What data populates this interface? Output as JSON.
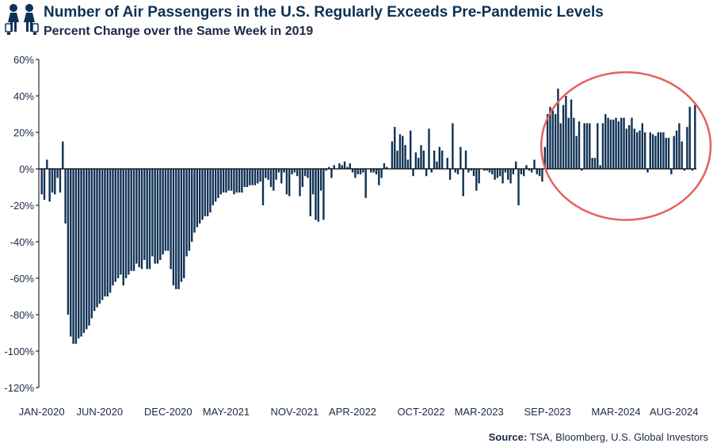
{
  "header": {
    "title": "Number of Air Passengers in the U.S. Regularly Exceeds Pre-Pandemic Levels",
    "subtitle": "Percent Change over the Same Week in 2019",
    "logo_icon": "travelers-icon"
  },
  "source": {
    "label": "Source:",
    "text": "TSA, Bloomberg, U.S. Global Investors"
  },
  "colors": {
    "bars": "#0f3155",
    "highlight_circle": "#e8605c",
    "axis": "#000000",
    "text": "#1b2a44"
  },
  "chart_data": {
    "type": "bar",
    "title": "Number of Air Passengers in the U.S. Regularly Exceeds Pre-Pandemic Levels",
    "subtitle": "Percent Change over the Same Week in 2019",
    "xlabel": "",
    "ylabel": "",
    "unit": "%",
    "ylim": [
      -120,
      60
    ],
    "yticks": [
      60,
      40,
      20,
      0,
      -20,
      -40,
      -60,
      -80,
      -100,
      -120
    ],
    "ytick_labels": [
      "60%",
      "40%",
      "20%",
      "0%",
      "-20%",
      "-40%",
      "-60%",
      "-80%",
      "-100%",
      "-120%"
    ],
    "xtick_labels": [
      {
        "label": "JAN-2020",
        "index": 0
      },
      {
        "label": "JUN-2020",
        "index": 22
      },
      {
        "label": "DEC-2020",
        "index": 48
      },
      {
        "label": "MAY-2021",
        "index": 70
      },
      {
        "label": "NOV-2021",
        "index": 96
      },
      {
        "label": "APR-2022",
        "index": 118
      },
      {
        "label": "OCT-2022",
        "index": 144
      },
      {
        "label": "MAR-2023",
        "index": 166
      },
      {
        "label": "SEP-2023",
        "index": 192
      },
      {
        "label": "MAR-2024",
        "index": 218
      },
      {
        "label": "AUG-2024",
        "index": 240
      }
    ],
    "grid": false,
    "series": [
      {
        "name": "Percent change vs same week 2019",
        "values": [
          -14,
          -17,
          5,
          -18,
          -13,
          -14,
          -5,
          -13,
          15,
          -30,
          -80,
          -92,
          -96,
          -96,
          -93,
          -92,
          -90,
          -88,
          -86,
          -82,
          -78,
          -76,
          -74,
          -72,
          -70,
          -70,
          -68,
          -64,
          -62,
          -60,
          -58,
          -64,
          -60,
          -58,
          -56,
          -56,
          -52,
          -54,
          -55,
          -50,
          -55,
          -55,
          -48,
          -52,
          -52,
          -50,
          -47,
          -45,
          -45,
          -55,
          -64,
          -66,
          -66,
          -62,
          -60,
          -48,
          -45,
          -40,
          -35,
          -32,
          -30,
          -28,
          -26,
          -26,
          -24,
          -20,
          -18,
          -16,
          -14,
          -13,
          -13,
          -12,
          -12,
          -14,
          -13,
          -13,
          -13,
          -10,
          -10,
          -9,
          -9,
          -9,
          -8,
          -7,
          -20,
          -5,
          -6,
          -10,
          -12,
          -6,
          -2,
          -8,
          -2,
          -14,
          -15,
          -3,
          -2,
          -4,
          -15,
          -10,
          -4,
          -5,
          -26,
          -14,
          -28,
          -29,
          -12,
          -28,
          -1,
          1,
          -5,
          2,
          0,
          3,
          2,
          4,
          1,
          3,
          -2,
          -5,
          -3,
          -3,
          -2,
          -16,
          0,
          -2,
          -2,
          -3,
          -9,
          -5,
          3,
          1,
          0,
          15,
          23,
          10,
          19,
          18,
          13,
          5,
          21,
          -4,
          9,
          6,
          13,
          10,
          -4,
          22,
          -2,
          10,
          4,
          12,
          10,
          0,
          6,
          -6,
          25,
          -2,
          -3,
          12,
          -15,
          10,
          -2,
          -1,
          -4,
          -12,
          -8,
          0,
          -1,
          -1,
          -2,
          -3,
          -6,
          -5,
          -4,
          -8,
          -2,
          -6,
          -8,
          -3,
          4,
          -20,
          -3,
          -4,
          2,
          -1,
          -2,
          5,
          -3,
          -4,
          -7,
          12,
          30,
          34,
          32,
          30,
          44,
          25,
          35,
          40,
          28,
          38,
          28,
          18,
          26,
          -1,
          25,
          25,
          25,
          6,
          6,
          25,
          2,
          25,
          30,
          28,
          27,
          27,
          28,
          26,
          28,
          28,
          22,
          24,
          28,
          22,
          20,
          21,
          25,
          20,
          -2,
          20,
          19,
          18,
          20,
          20,
          20,
          17,
          17,
          -3,
          18,
          21,
          25,
          15,
          -1,
          23,
          34,
          -1,
          35
        ]
      }
    ],
    "annotations": [
      {
        "type": "ellipse",
        "description": "highlighted region of recent weeks",
        "covers_indices": [
          192,
          250
        ]
      }
    ]
  }
}
